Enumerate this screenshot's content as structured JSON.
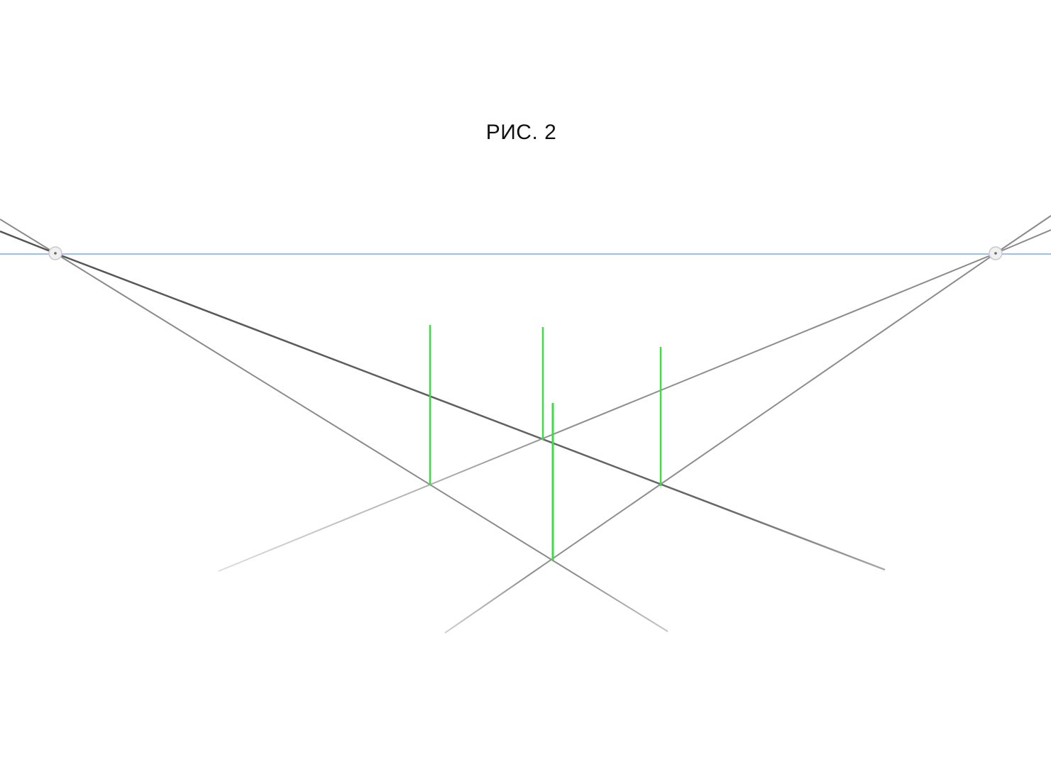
{
  "figure": {
    "caption": "РИС. 2"
  },
  "colors": {
    "background": "#ffffff",
    "horizon_line": "#3b78e7",
    "perspective_line": "#8a8a8a",
    "perspective_line_dark": "#5a5a5a",
    "vertical_edge": "#3ddc45",
    "vanishing_point_fill": "#f0f0f0",
    "vanishing_point_stroke": "#c8c8c8"
  },
  "icons": {
    "vanishing_point": "vanishing-point-handle-icon"
  }
}
